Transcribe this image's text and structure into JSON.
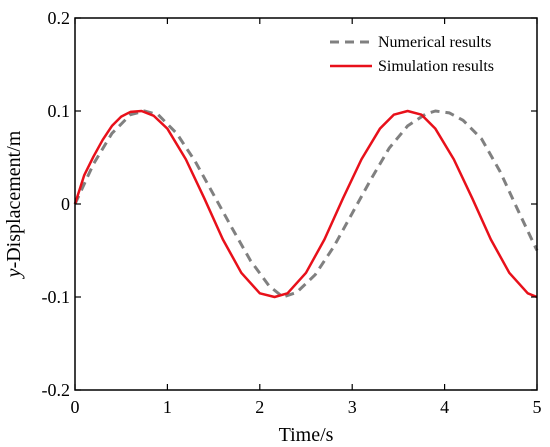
{
  "chart_data": {
    "type": "line",
    "title": "",
    "xlabel": "Time/s",
    "ylabel_italic": "y",
    "ylabel_rest": "-Displacement/m",
    "xlim": [
      0,
      5
    ],
    "ylim": [
      -0.2,
      0.2
    ],
    "xticks": [
      0,
      1,
      2,
      3,
      4,
      5
    ],
    "xtick_labels": [
      "0",
      "1",
      "2",
      "3",
      "4",
      "5"
    ],
    "yticks": [
      -0.2,
      -0.1,
      0,
      0.1,
      0.2
    ],
    "ytick_labels": [
      "-0.2",
      "-0.1",
      "0",
      "0.1",
      "0.2"
    ],
    "grid": false,
    "legend_position": "top-right",
    "series": [
      {
        "name": "Numerical results",
        "color": "#808080",
        "style": "dashed",
        "x": [
          0,
          0.2,
          0.4,
          0.6,
          0.75,
          0.9,
          1.1,
          1.3,
          1.5,
          1.7,
          1.9,
          2.1,
          2.25,
          2.4,
          2.6,
          2.8,
          3.0,
          3.2,
          3.4,
          3.6,
          3.8,
          3.9,
          4.05,
          4.2,
          4.4,
          4.6,
          4.8,
          5.0
        ],
        "y": [
          0,
          0.043,
          0.076,
          0.096,
          0.1,
          0.096,
          0.076,
          0.046,
          0.01,
          -0.026,
          -0.061,
          -0.088,
          -0.1,
          -0.095,
          -0.076,
          -0.046,
          -0.01,
          0.026,
          0.06,
          0.084,
          0.097,
          0.1,
          0.098,
          0.09,
          0.07,
          0.035,
          -0.008,
          -0.05
        ]
      },
      {
        "name": "Simulation results",
        "color": "#e8101a",
        "style": "solid",
        "x": [
          0,
          0.1,
          0.2,
          0.3,
          0.4,
          0.5,
          0.6,
          0.72,
          0.85,
          1.0,
          1.2,
          1.4,
          1.6,
          1.8,
          2.0,
          2.16,
          2.3,
          2.5,
          2.7,
          2.9,
          3.1,
          3.3,
          3.45,
          3.6,
          3.75,
          3.9,
          4.1,
          4.3,
          4.5,
          4.7,
          4.9,
          5.0
        ],
        "y": [
          0,
          0.031,
          0.051,
          0.069,
          0.084,
          0.094,
          0.099,
          0.1,
          0.095,
          0.081,
          0.048,
          0.006,
          -0.038,
          -0.074,
          -0.096,
          -0.1,
          -0.096,
          -0.074,
          -0.038,
          0.006,
          0.048,
          0.081,
          0.096,
          0.1,
          0.096,
          0.081,
          0.048,
          0.006,
          -0.038,
          -0.074,
          -0.096,
          -0.1
        ]
      }
    ]
  }
}
